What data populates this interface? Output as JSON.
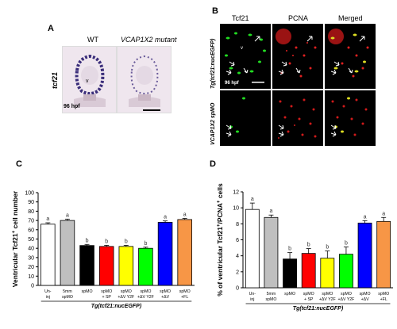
{
  "panel_a": {
    "letter": "A",
    "col_wt": "WT",
    "col_mut": "VCAP1X2 mutant",
    "row_label": "tcf21",
    "stage": "96 hpf",
    "ventricle": "v"
  },
  "panel_b": {
    "letter": "B",
    "col1": "Tcf21",
    "col2": "PCNA",
    "col3": "Merged",
    "row1": "Tg(tcf21:nucEGFP)",
    "row2": "VCAP1X2 spMO",
    "stage": "96 hpf",
    "ventricle": "v"
  },
  "chart_data": [
    {
      "panel": "C",
      "type": "bar",
      "ylabel_pre": "Ventricular Tcf21",
      "ylabel_sup": "+",
      "ylabel_post": " cell number",
      "ylim": [
        0,
        100
      ],
      "yticks": [
        "0",
        "10",
        "20",
        "30",
        "40",
        "50",
        "60",
        "70",
        "80",
        "90",
        "100"
      ],
      "categories": [
        [
          "Un-",
          "inj"
        ],
        [
          "5mm",
          "spMO"
        ],
        [
          "spMO",
          ""
        ],
        [
          "spMO",
          "+ SP"
        ],
        [
          "spMO",
          "+ΔV Y2F"
        ],
        [
          "spMO",
          "+ΔV Y2F"
        ],
        [
          "spMO",
          "+ΔV"
        ],
        [
          "spMO",
          "+FL"
        ]
      ],
      "values": [
        66,
        70,
        43,
        42,
        42,
        40,
        68,
        71
      ],
      "errors": [
        1.5,
        1.5,
        1.2,
        1.2,
        1.2,
        1.2,
        1.5,
        1.2
      ],
      "letters": [
        "a",
        "a",
        "b",
        "b",
        "b",
        "b",
        "a",
        "a"
      ],
      "colors": [
        "#ffffff",
        "#bfbfbf",
        "#000000",
        "#ff0000",
        "#ffff00",
        "#00ff00",
        "#0000ff",
        "#f79646"
      ],
      "group_label": "Tg(tcf21:nucEGFP)"
    },
    {
      "panel": "D",
      "type": "bar",
      "ylabel_pre": "% of ventricular Tcf21",
      "ylabel_sup": "+",
      "ylabel_mid": "/PCNA",
      "ylabel_sup2": "+",
      "ylabel_post": " cells",
      "ylim": [
        0,
        12
      ],
      "yticks": [
        "0",
        "2",
        "4",
        "6",
        "8",
        "10",
        "12"
      ],
      "categories": [
        [
          "Un-",
          "inj"
        ],
        [
          "5mm",
          "spMO"
        ],
        [
          "spMO",
          ""
        ],
        [
          "spMO",
          "+ SP"
        ],
        [
          "spMO",
          "+ΔV Y2F"
        ],
        [
          "spMO",
          "+ΔV Y2F"
        ],
        [
          "spMO",
          "+ΔV"
        ],
        [
          "spMO",
          "+FL"
        ]
      ],
      "values": [
        9.8,
        8.8,
        3.6,
        4.3,
        3.7,
        4.2,
        8.1,
        8.3
      ],
      "errors": [
        0.8,
        0.3,
        0.8,
        0.6,
        0.9,
        0.9,
        0.3,
        0.5
      ],
      "letters": [
        "a",
        "a",
        "b",
        "b",
        "b",
        "b",
        "a",
        "a"
      ],
      "colors": [
        "#ffffff",
        "#bfbfbf",
        "#000000",
        "#ff0000",
        "#ffff00",
        "#00ff00",
        "#0000ff",
        "#f79646"
      ],
      "group_label": "Tg(tcf21:nucEGFP)"
    }
  ]
}
